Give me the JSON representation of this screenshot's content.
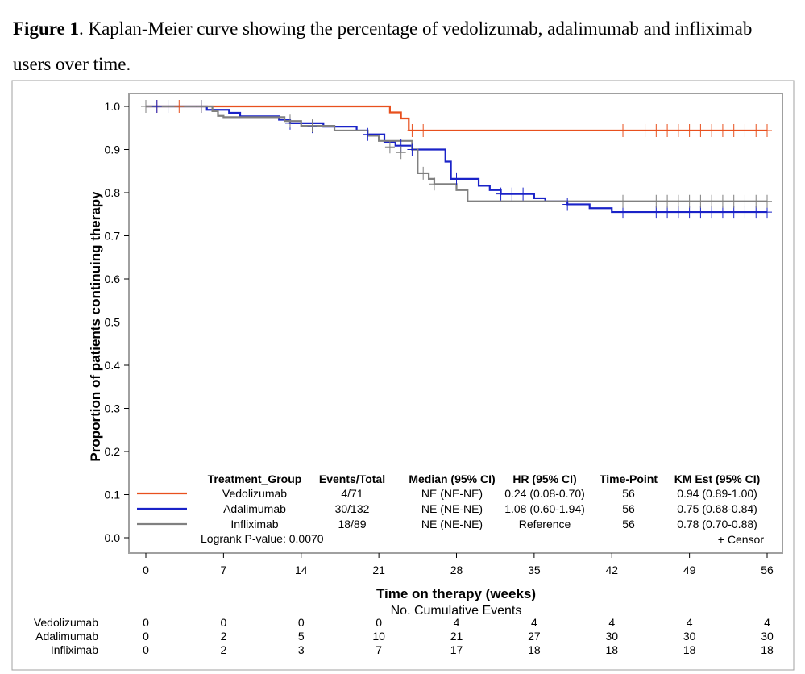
{
  "caption": {
    "label": "Figure 1",
    "text": ". Kaplan-Meier curve showing the percentage of vedolizumab, adalimumab and infliximab users over time."
  },
  "chart_data": {
    "type": "line",
    "title": "",
    "xlabel": "Time on therapy (weeks)",
    "ylabel": "Proportion of patients continuing therapy",
    "xlim": [
      0,
      56
    ],
    "ylim": [
      0,
      1.0
    ],
    "xticks": [
      0,
      7,
      14,
      21,
      28,
      35,
      42,
      49,
      56
    ],
    "yticks": [
      0.0,
      0.1,
      0.2,
      0.3,
      0.4,
      0.5,
      0.6,
      0.7,
      0.8,
      0.9,
      1.0
    ],
    "grid": false,
    "series": [
      {
        "name": "Vedolizumab",
        "color": "#e8501e",
        "steps": [
          [
            0,
            1.0
          ],
          [
            22,
            0.986
          ],
          [
            23,
            0.972
          ],
          [
            23.7,
            0.944
          ],
          [
            56,
            0.944
          ]
        ],
        "censors": [
          [
            0,
            1.0
          ],
          [
            1,
            1.0
          ],
          [
            3,
            1.0
          ],
          [
            5,
            1.0
          ],
          [
            24,
            0.944
          ],
          [
            25,
            0.944
          ],
          [
            43,
            0.944
          ],
          [
            45,
            0.944
          ],
          [
            46,
            0.944
          ],
          [
            47,
            0.944
          ],
          [
            48,
            0.944
          ],
          [
            49,
            0.944
          ],
          [
            50,
            0.944
          ],
          [
            51,
            0.944
          ],
          [
            52,
            0.944
          ],
          [
            53,
            0.944
          ],
          [
            54,
            0.944
          ],
          [
            55,
            0.944
          ],
          [
            56,
            0.944
          ]
        ]
      },
      {
        "name": "Adalimumab",
        "color": "#1a23c8",
        "steps": [
          [
            0,
            1.0
          ],
          [
            5.5,
            0.992
          ],
          [
            7.5,
            0.985
          ],
          [
            8.5,
            0.977
          ],
          [
            12,
            0.969
          ],
          [
            13,
            0.961
          ],
          [
            16,
            0.953
          ],
          [
            19,
            0.944
          ],
          [
            20,
            0.935
          ],
          [
            21.5,
            0.918
          ],
          [
            22.5,
            0.909
          ],
          [
            24,
            0.9
          ],
          [
            27,
            0.872
          ],
          [
            27.5,
            0.832
          ],
          [
            30,
            0.816
          ],
          [
            31,
            0.806
          ],
          [
            32,
            0.797
          ],
          [
            35,
            0.787
          ],
          [
            36,
            0.78
          ],
          [
            38,
            0.773
          ],
          [
            40,
            0.764
          ],
          [
            42,
            0.755
          ],
          [
            56,
            0.755
          ]
        ],
        "censors": [
          [
            0,
            1.0
          ],
          [
            1,
            1.0
          ],
          [
            2,
            1.0
          ],
          [
            5,
            1.0
          ],
          [
            13,
            0.961
          ],
          [
            15,
            0.953
          ],
          [
            20,
            0.935
          ],
          [
            23,
            0.909
          ],
          [
            24,
            0.9
          ],
          [
            28,
            0.832
          ],
          [
            32,
            0.797
          ],
          [
            33,
            0.797
          ],
          [
            34,
            0.797
          ],
          [
            38,
            0.773
          ],
          [
            43,
            0.755
          ],
          [
            46,
            0.755
          ],
          [
            47,
            0.755
          ],
          [
            48,
            0.755
          ],
          [
            49,
            0.755
          ],
          [
            50,
            0.755
          ],
          [
            51,
            0.755
          ],
          [
            52,
            0.755
          ],
          [
            53,
            0.755
          ],
          [
            54,
            0.755
          ],
          [
            55,
            0.755
          ],
          [
            56,
            0.755
          ]
        ]
      },
      {
        "name": "Infliximab",
        "color": "#808080",
        "steps": [
          [
            0,
            1.0
          ],
          [
            6,
            0.989
          ],
          [
            6.5,
            0.978
          ],
          [
            7,
            0.975
          ],
          [
            12.5,
            0.966
          ],
          [
            14,
            0.955
          ],
          [
            15,
            0.955
          ],
          [
            17,
            0.944
          ],
          [
            20,
            0.932
          ],
          [
            21,
            0.92
          ],
          [
            24,
            0.9
          ],
          [
            24.5,
            0.845
          ],
          [
            25.5,
            0.832
          ],
          [
            26,
            0.82
          ],
          [
            28,
            0.806
          ],
          [
            29,
            0.78
          ],
          [
            56,
            0.78
          ]
        ],
        "censors": [
          [
            0,
            1.0
          ],
          [
            2,
            1.0
          ],
          [
            5,
            1.0
          ],
          [
            13,
            0.966
          ],
          [
            15,
            0.955
          ],
          [
            22,
            0.906
          ],
          [
            23,
            0.893
          ],
          [
            25,
            0.845
          ],
          [
            26,
            0.82
          ],
          [
            43,
            0.78
          ],
          [
            46,
            0.78
          ],
          [
            47,
            0.78
          ],
          [
            48,
            0.78
          ],
          [
            49,
            0.78
          ],
          [
            50,
            0.78
          ],
          [
            51,
            0.78
          ],
          [
            52,
            0.78
          ],
          [
            53,
            0.78
          ],
          [
            54,
            0.78
          ],
          [
            55,
            0.78
          ],
          [
            56,
            0.78
          ]
        ]
      }
    ],
    "stats_table": {
      "headers": [
        "Treatment_Group",
        "Events/Total",
        "Median (95% CI)",
        "HR (95% CI)",
        "Time-Point",
        "KM Est (95% CI)"
      ],
      "rows": [
        [
          "Vedolizumab",
          "4/71",
          "NE (NE-NE)",
          "0.24 (0.08-0.70)",
          "56",
          "0.94 (0.89-1.00)"
        ],
        [
          "Adalimumab",
          "30/132",
          "NE (NE-NE)",
          "1.08 (0.60-1.94)",
          "56",
          "0.75 (0.68-0.84)"
        ],
        [
          "Infliximab",
          "18/89",
          "NE (NE-NE)",
          "Reference",
          "56",
          "0.78 (0.70-0.88)"
        ]
      ],
      "logrank": "Logrank P-value: 0.0070",
      "censor_label": "+ Censor"
    },
    "risk_table": {
      "title": "No. Cumulative Events",
      "rows": [
        {
          "name": "Vedolizumab",
          "values": [
            "0",
            "0",
            "0",
            "0",
            "4",
            "4",
            "4",
            "4",
            "4"
          ]
        },
        {
          "name": "Adalimumab",
          "values": [
            "0",
            "2",
            "5",
            "10",
            "21",
            "27",
            "30",
            "30",
            "30"
          ]
        },
        {
          "name": "Infliximab",
          "values": [
            "0",
            "2",
            "3",
            "7",
            "17",
            "18",
            "18",
            "18",
            "18"
          ]
        }
      ]
    }
  }
}
